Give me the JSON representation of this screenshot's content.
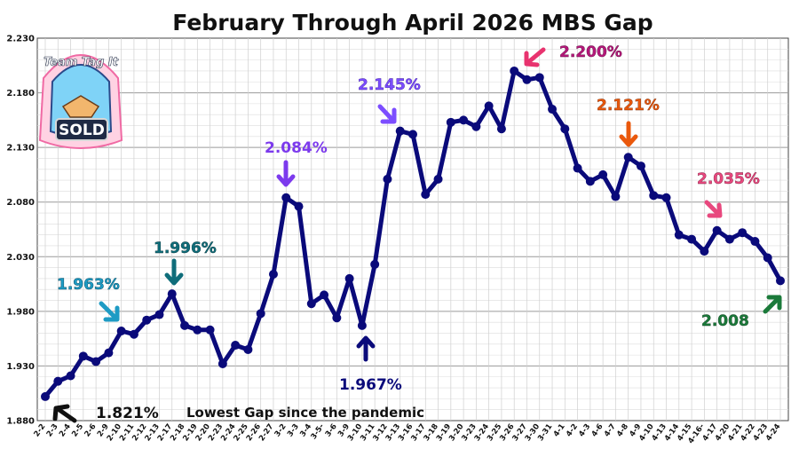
{
  "chart_data": {
    "type": "line",
    "title": "February Through April 2026 MBS Gap",
    "xlabel": "",
    "ylabel": "",
    "ylim": [
      1.88,
      2.23
    ],
    "yticks": [
      "1.880",
      "1.930",
      "1.980",
      "2.030",
      "2.080",
      "2.130",
      "2.180",
      "2.230"
    ],
    "grid": true,
    "line_color": "#0a0a7a",
    "categories": [
      "2-2",
      "2-3",
      "2-4",
      "2-5",
      "2-6",
      "2-9",
      "2-10",
      "2-11",
      "2-12",
      "2-13",
      "2-17",
      "2-18",
      "2-19",
      "2-20",
      "2-23",
      "2-24",
      "2-25",
      "2-26",
      "2-27",
      "3-2",
      "3-3",
      "3-4",
      "3-5",
      "3-6",
      "3-9",
      "3-10",
      "3-11",
      "3-12",
      "3-13",
      "3-16",
      "3-17",
      "3-18",
      "3-19",
      "3-20",
      "3-23",
      "3-24",
      "3-25",
      "3-26",
      "3-27",
      "3-30",
      "3-31",
      "4-1",
      "4-2",
      "4-3",
      "4-6",
      "4-7",
      "4-8",
      "4-9",
      "4-10",
      "4-13",
      "4-14",
      "4-15",
      "4-16",
      "4-17",
      "4-20",
      "4-21",
      "4-22",
      "4-23",
      "4-24"
    ],
    "x_tick_labels": [
      "2-2",
      "2-3",
      "2-4",
      "2-5",
      "2-6",
      "2-9",
      "2-10",
      "2-11",
      "2-12",
      "2-13",
      "2-17",
      "2-18",
      "2-19",
      "2-20",
      "2-23",
      "2-24",
      "2-25",
      "2-26",
      "2-27",
      "3-2",
      "3-3",
      "3-4",
      "3-5-",
      "3-6",
      "3-9",
      "3-10",
      "3-11",
      "3-12",
      "3-13",
      "3-16",
      "3-17",
      "3-18",
      "3-19",
      "3-20",
      "3-23",
      "3-24",
      "3-25",
      "3-26",
      "3-27",
      "3-30",
      "3-31",
      "4-1",
      "4-2",
      "4-3",
      "4-6",
      "4-7",
      "4-8",
      "4-9",
      "4-10",
      "4-13",
      "4-14",
      "4-15",
      "4-16-",
      "4-17",
      "4-20",
      "4-21",
      "4-22",
      "4-23",
      "4-24"
    ],
    "values": [
      1.902,
      1.916,
      1.921,
      1.939,
      1.934,
      1.942,
      1.962,
      1.959,
      1.972,
      1.977,
      1.996,
      1.967,
      1.963,
      1.963,
      1.932,
      1.949,
      1.945,
      1.978,
      2.014,
      2.084,
      2.076,
      1.987,
      1.995,
      1.974,
      2.01,
      1.967,
      2.023,
      2.101,
      2.145,
      2.142,
      2.087,
      2.101,
      2.153,
      2.155,
      2.149,
      2.168,
      2.147,
      2.2,
      2.192,
      2.194,
      2.165,
      2.147,
      2.111,
      2.099,
      2.105,
      2.085,
      2.121,
      2.113,
      2.086,
      2.084,
      2.05,
      2.046,
      2.035,
      2.054,
      2.046,
      2.052,
      2.044,
      2.029,
      2.008
    ]
  },
  "annotations": [
    {
      "text": "1.821%",
      "color": "#111111"
    },
    {
      "text": "Lowest Gap since the pandemic",
      "color": "#111111"
    },
    {
      "text": "1.963%",
      "color": "#1e9bc4"
    },
    {
      "text": "1.996%",
      "color": "#0f6d7a"
    },
    {
      "text": "2.084%",
      "color": "#7c3aed"
    },
    {
      "text": "1.967%",
      "color": "#0a0a7a"
    },
    {
      "text": "2.145%",
      "color": "#7c4dff"
    },
    {
      "text": "2.200%",
      "color": "#b5177a"
    },
    {
      "text": "2.121%",
      "color": "#ea580c"
    },
    {
      "text": "2.035%",
      "color": "#e8487e"
    },
    {
      "text": "2.008",
      "color": "#1b7a3a"
    }
  ],
  "logo": {
    "top_text": "Team Tag It",
    "bottom_text": "SOLD"
  }
}
